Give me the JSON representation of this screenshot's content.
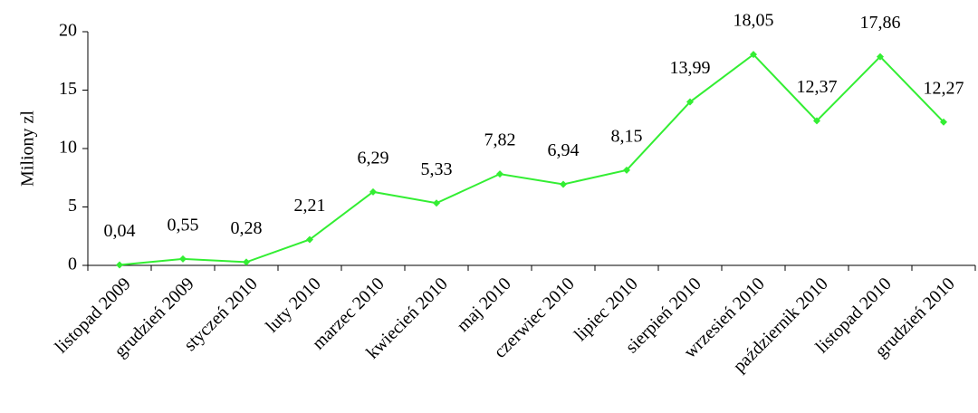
{
  "chart_data": {
    "type": "line",
    "y_label": "Miliony zl",
    "categories": [
      "listopad 2009",
      "grudzień 2009",
      "styczeń 2010",
      "luty 2010",
      "marzec 2010",
      "kwiecień 2010",
      "maj 2010",
      "czerwiec 2010",
      "lipiec 2010",
      "sierpień 2010",
      "wrzesień 2010",
      "październik 2010",
      "listopad 2010",
      "grudzień 2010"
    ],
    "values": [
      0.04,
      0.55,
      0.28,
      2.21,
      6.29,
      5.33,
      7.82,
      6.94,
      8.15,
      13.99,
      18.05,
      12.37,
      17.86,
      12.27
    ],
    "value_labels": [
      "0,04",
      "0,55",
      "0,28",
      "2,21",
      "6,29",
      "5,33",
      "7,82",
      "6,94",
      "8,15",
      "13,99",
      "18,05",
      "12,37",
      "17,86",
      "12,27"
    ],
    "color": "#33ee33",
    "ylim": [
      0,
      20
    ],
    "yticks": [
      0,
      5,
      10,
      15,
      20
    ],
    "grid": false
  }
}
